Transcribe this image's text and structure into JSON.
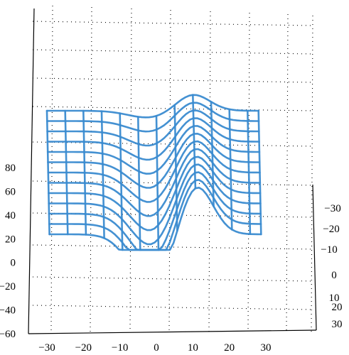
{
  "chart_data": {
    "type": "surface-wireframe-3d",
    "title": "",
    "xlabel": "",
    "ylabel": "",
    "zlabel": "",
    "color": "#3a8bd0",
    "grid": true,
    "x_ticks": [
      -30,
      -20,
      -10,
      0,
      10,
      20,
      30
    ],
    "y_ticks": [
      -30,
      -20,
      -10,
      0,
      10,
      20,
      30
    ],
    "z_ticks": [
      80,
      60,
      40,
      20,
      0,
      -20,
      -40,
      -60
    ],
    "x_range": [
      -30,
      28
    ],
    "y_range": [
      -30,
      30
    ],
    "z_range": [
      -60,
      80
    ],
    "surface": {
      "x": [
        -30,
        -25,
        -20,
        -15,
        -10,
        -5,
        0,
        5,
        10,
        15,
        20,
        25,
        28
      ],
      "y": [
        30,
        25,
        20,
        15,
        10,
        5,
        0,
        -5,
        -10,
        -15,
        -20,
        -25,
        -30
      ],
      "peak": {
        "x": 10,
        "z_max": 69
      },
      "valley": {
        "x": -2,
        "z_min": 0
      },
      "plateau_z": 60
    }
  }
}
